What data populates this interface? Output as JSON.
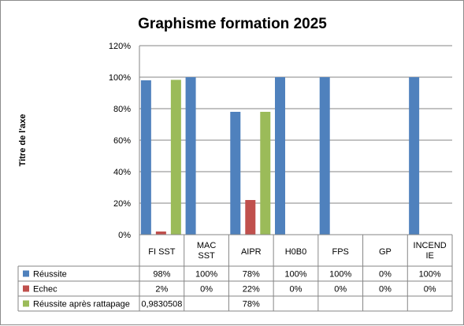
{
  "chart_data": {
    "type": "bar",
    "title": "Graphisme formation 2025",
    "ylabel": "Titre de l'axe",
    "xlabel": "",
    "ylim": [
      0,
      1.2
    ],
    "yticks": [
      0,
      0.2,
      0.4,
      0.6,
      0.8,
      1.0,
      1.2
    ],
    "ytick_labels": [
      "0%",
      "20%",
      "40%",
      "60%",
      "80%",
      "100%",
      "120%"
    ],
    "grid": true,
    "legend": "data-table",
    "categories": [
      [
        "FI SST"
      ],
      [
        "MAC",
        "SST"
      ],
      [
        "AIPR"
      ],
      [
        "H0B0"
      ],
      [
        "FPS"
      ],
      [
        "GP"
      ],
      [
        "INCEND",
        "IE"
      ]
    ],
    "series": [
      {
        "name": "Réussite",
        "color": "#4f81bd",
        "values": [
          0.98,
          1.0,
          0.78,
          1.0,
          1.0,
          0,
          1.0
        ],
        "labels": [
          "98%",
          "100%",
          "78%",
          "100%",
          "100%",
          "0%",
          "100%"
        ]
      },
      {
        "name": "Echec",
        "color": "#c0504d",
        "values": [
          0.02,
          0,
          0.22,
          0,
          0,
          0,
          0
        ],
        "labels": [
          "2%",
          "0%",
          "22%",
          "0%",
          "0%",
          "0%",
          "0%"
        ]
      },
      {
        "name": "Réussite après rattapage",
        "color": "#9bbb59",
        "values": [
          0.9830508,
          null,
          0.78,
          null,
          null,
          null,
          null
        ],
        "labels": [
          "0,9830508",
          "",
          "78%",
          "",
          "",
          "",
          ""
        ]
      }
    ]
  }
}
